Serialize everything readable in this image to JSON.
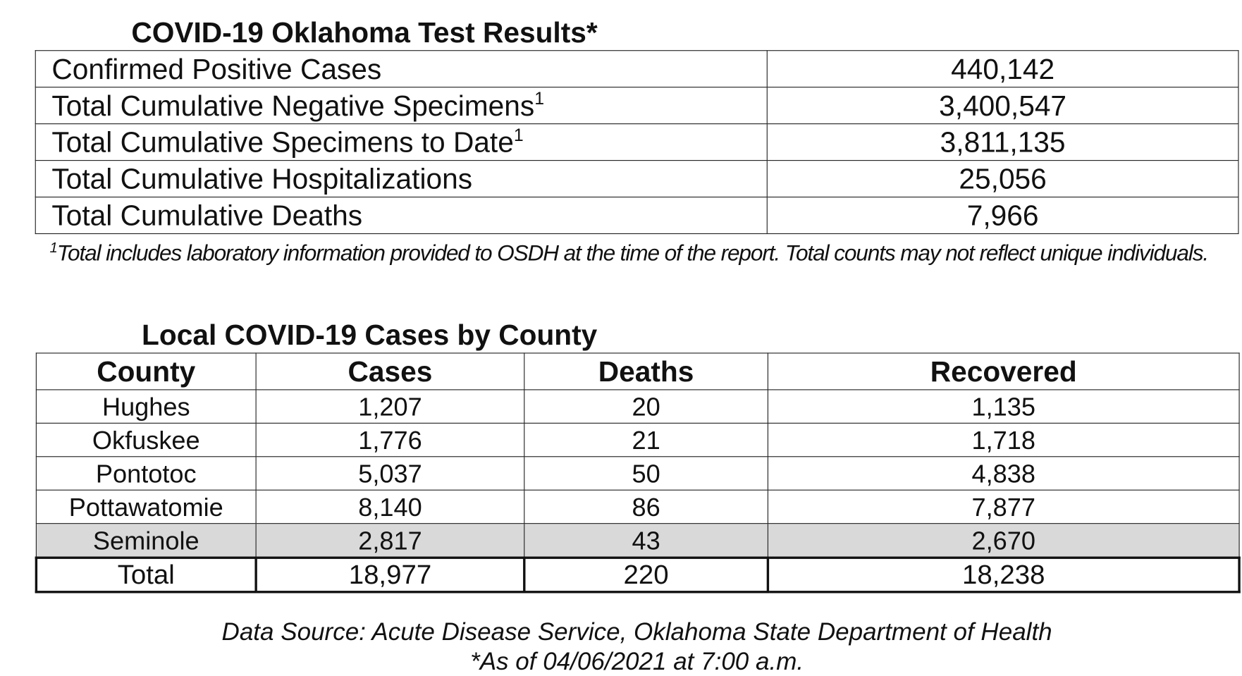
{
  "test_results": {
    "title": "COVID-19 Oklahoma Test Results*",
    "rows": [
      {
        "label": "Confirmed Positive Cases",
        "value": "440,142"
      },
      {
        "label": "Total Cumulative Negative Specimens",
        "sup": "1",
        "value": "3,400,547"
      },
      {
        "label": "Total Cumulative Specimens to Date",
        "sup": "1",
        "value": "3,811,135"
      },
      {
        "label": "Total Cumulative Hospitalizations",
        "value": "25,056"
      },
      {
        "label": "Total Cumulative Deaths",
        "value": "7,966"
      }
    ],
    "footnote": {
      "marker": "1",
      "text": "Total includes laboratory information provided to OSDH at the time of the report. Total counts may not reflect unique individuals."
    }
  },
  "county_table": {
    "title": "Local COVID-19 Cases by County",
    "header": [
      "County",
      "Cases",
      "Deaths",
      "Recovered"
    ],
    "rows": [
      [
        "Hughes",
        "1,207",
        "20",
        "1,135"
      ],
      [
        "Okfuskee",
        "1,776",
        "21",
        "1,718"
      ],
      [
        "Pontotoc",
        "5,037",
        "50",
        "4,838"
      ],
      [
        "Pottawatomie",
        "8,140",
        "86",
        "7,877"
      ],
      [
        "Seminole",
        "2,817",
        "43",
        "2,670"
      ]
    ],
    "total": [
      "Total",
      "18,977",
      "220",
      "18,238"
    ]
  },
  "source": {
    "line1": "Data Source: Acute Disease Service, Oklahoma State Department of Health",
    "line2": "*As of 04/06/2021 at 7:00 a.m."
  }
}
